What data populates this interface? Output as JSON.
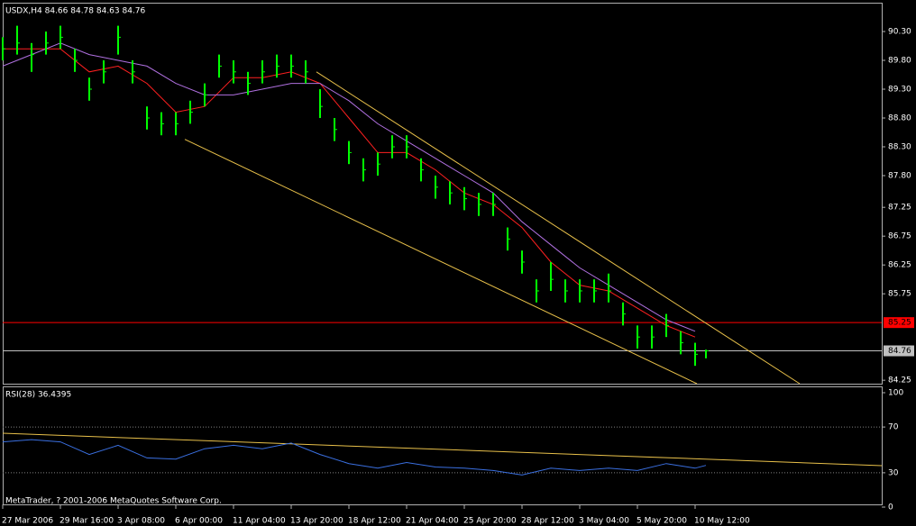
{
  "chart_data": [
    {
      "type": "ohlc",
      "title": "USDX,H4  84.66 84.78 84.63 84.76",
      "color": "#00ff00",
      "x": [
        0,
        4,
        8,
        12,
        16,
        20,
        24,
        28,
        32,
        36,
        40,
        44,
        48,
        52,
        56,
        60,
        64,
        68,
        72,
        76,
        80,
        84,
        88,
        92,
        96,
        100,
        104,
        108,
        112,
        116,
        120,
        124,
        128,
        132,
        136,
        140,
        144,
        148,
        152,
        156,
        160,
        164,
        168,
        172,
        176,
        180,
        184,
        188,
        192,
        195
      ],
      "high": [
        90.2,
        90.4,
        90.1,
        90.3,
        90.4,
        90.0,
        89.5,
        89.8,
        90.4,
        89.8,
        89.0,
        88.9,
        88.9,
        89.1,
        89.4,
        89.9,
        89.8,
        89.6,
        89.8,
        89.9,
        89.9,
        89.8,
        89.3,
        88.8,
        88.4,
        88.1,
        88.2,
        88.5,
        88.5,
        88.1,
        87.8,
        87.7,
        87.6,
        87.5,
        87.5,
        86.9,
        86.5,
        86.0,
        86.3,
        86.0,
        86.0,
        86.0,
        86.1,
        85.6,
        85.2,
        85.2,
        85.4,
        85.1,
        84.9,
        84.78
      ],
      "low": [
        89.8,
        89.9,
        89.6,
        89.9,
        90.0,
        89.6,
        89.1,
        89.4,
        89.9,
        89.4,
        88.6,
        88.5,
        88.5,
        88.7,
        89.0,
        89.5,
        89.4,
        89.2,
        89.4,
        89.5,
        89.5,
        89.4,
        88.8,
        88.4,
        88.0,
        87.7,
        87.8,
        88.1,
        88.1,
        87.7,
        87.4,
        87.3,
        87.2,
        87.1,
        87.1,
        86.5,
        86.1,
        85.6,
        85.8,
        85.6,
        85.6,
        85.6,
        85.6,
        85.2,
        84.8,
        84.8,
        85.0,
        84.7,
        84.5,
        84.63
      ],
      "close": [
        90.0,
        90.1,
        89.9,
        90.1,
        90.2,
        89.8,
        89.3,
        89.6,
        90.2,
        89.6,
        88.8,
        88.7,
        88.7,
        88.9,
        89.2,
        89.7,
        89.6,
        89.4,
        89.6,
        89.7,
        89.7,
        89.6,
        89.0,
        88.6,
        88.2,
        87.9,
        88.0,
        88.3,
        88.3,
        87.9,
        87.6,
        87.5,
        87.4,
        87.3,
        87.3,
        86.7,
        86.3,
        85.8,
        86.0,
        85.8,
        85.8,
        85.8,
        85.8,
        85.4,
        85.0,
        85.0,
        85.2,
        84.9,
        84.7,
        84.76
      ],
      "series": [
        {
          "color": "#ff2020",
          "x": [
            0,
            8,
            16,
            24,
            32,
            40,
            48,
            56,
            64,
            72,
            80,
            88,
            96,
            104,
            112,
            120,
            128,
            136,
            144,
            152,
            160,
            168,
            176,
            184,
            192
          ],
          "values": [
            90.0,
            90.0,
            90.0,
            89.6,
            89.7,
            89.4,
            88.9,
            89.0,
            89.5,
            89.5,
            89.6,
            89.4,
            88.8,
            88.2,
            88.2,
            87.9,
            87.5,
            87.3,
            86.9,
            86.3,
            85.9,
            85.8,
            85.5,
            85.2,
            85.0
          ]
        },
        {
          "color": "#b070e0",
          "x": [
            0,
            8,
            16,
            24,
            32,
            40,
            48,
            56,
            64,
            72,
            80,
            88,
            96,
            104,
            112,
            120,
            128,
            136,
            144,
            152,
            160,
            168,
            176,
            184,
            192
          ],
          "values": [
            89.7,
            89.9,
            90.1,
            89.9,
            89.8,
            89.7,
            89.4,
            89.2,
            89.2,
            89.3,
            89.4,
            89.4,
            89.1,
            88.7,
            88.4,
            88.1,
            87.8,
            87.5,
            87.0,
            86.6,
            86.2,
            85.9,
            85.6,
            85.3,
            85.1
          ]
        }
      ],
      "trendlines": [
        {
          "color": "#e8c04a",
          "x": [
            87,
            221
          ],
          "y": [
            89.6,
            84.19
          ]
        },
        {
          "color": "#e8c04a",
          "x": [
            50.5,
            192.5
          ],
          "y": [
            88.43,
            84.19
          ]
        }
      ],
      "hlines": [
        {
          "value": 85.25,
          "label": "85.25",
          "color": "#ff0000"
        },
        {
          "value": 84.76,
          "label": "84.76",
          "color": "#c0c0c0"
        }
      ],
      "xlim": [
        0,
        243.75
      ],
      "ylim": [
        84.19,
        90.8
      ],
      "yticks": [
        {
          "value": 90.3,
          "label": "90.30"
        },
        {
          "value": 89.8,
          "label": "89.80"
        },
        {
          "value": 89.3,
          "label": "89.30"
        },
        {
          "value": 88.8,
          "label": "88.80"
        },
        {
          "value": 88.3,
          "label": "88.30"
        },
        {
          "value": 87.8,
          "label": "87.80"
        },
        {
          "value": 87.25,
          "label": "87.25"
        },
        {
          "value": 86.75,
          "label": "86.75"
        },
        {
          "value": 86.25,
          "label": "86.25"
        },
        {
          "value": 85.75,
          "label": "85.75"
        },
        {
          "value": 84.25,
          "label": "84.25"
        }
      ]
    },
    {
      "type": "line",
      "title": "RSI(28) 36.4395",
      "annotation": "MetaTrader, ? 2001-2006 MetaQuotes Software Corp.",
      "series": [
        {
          "color": "#3a6fe0",
          "x": [
            0,
            8,
            16,
            24,
            32,
            40,
            48,
            56,
            64,
            72,
            80,
            88,
            96,
            104,
            112,
            120,
            128,
            136,
            144,
            152,
            160,
            168,
            176,
            184,
            192,
            195
          ],
          "values": [
            57,
            59,
            57,
            46,
            54,
            43,
            42,
            51,
            54,
            51,
            56,
            46,
            38,
            34,
            39,
            35,
            34,
            32,
            28,
            34,
            32,
            34,
            32,
            38,
            34,
            36.4395
          ]
        }
      ],
      "trendlines": [
        {
          "color": "#e8c04a",
          "x": [
            0,
            243.75
          ],
          "y": [
            64.6,
            36.2
          ]
        }
      ],
      "levels": [
        70,
        30
      ],
      "xlim": [
        0,
        243.75
      ],
      "ylim": [
        0,
        100
      ],
      "yticks": [
        100,
        70,
        30,
        0
      ],
      "xticks": [
        {
          "value": 0,
          "label": "27 Mar 2006"
        },
        {
          "value": 16,
          "label": "29 Mar 16:00"
        },
        {
          "value": 32,
          "label": "3 Apr 08:00"
        },
        {
          "value": 48,
          "label": "6 Apr 00:00"
        },
        {
          "value": 64,
          "label": "11 Apr 04:00"
        },
        {
          "value": 80,
          "label": "13 Apr 20:00"
        },
        {
          "value": 96,
          "label": "18 Apr 12:00"
        },
        {
          "value": 112,
          "label": "21 Apr 04:00"
        },
        {
          "value": 128,
          "label": "25 Apr 20:00"
        },
        {
          "value": 144,
          "label": "28 Apr 12:00"
        },
        {
          "value": 160,
          "label": "3 May 04:00"
        },
        {
          "value": 176,
          "label": "5 May 20:00"
        },
        {
          "value": 192,
          "label": "10 May 12:00"
        }
      ]
    }
  ]
}
